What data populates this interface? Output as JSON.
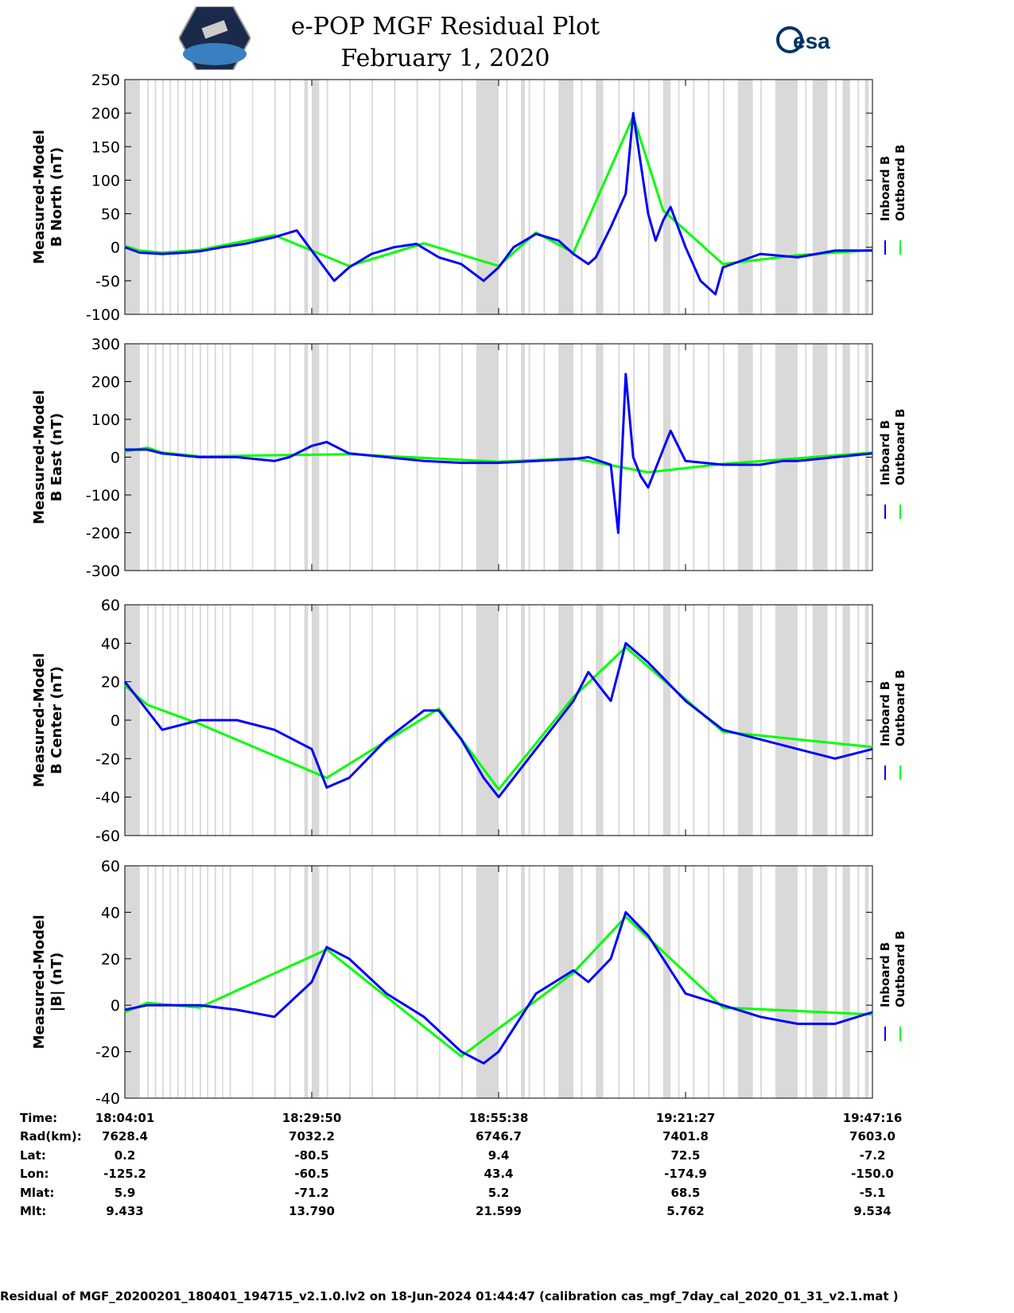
{
  "header": {
    "title_line1": "e-POP MGF Residual Plot",
    "title_line2": "February 1, 2020",
    "left_logo": "cassiope-mission-patch",
    "right_logo_text": "esa"
  },
  "chart_data": [
    {
      "type": "line",
      "ylabel_line1": "Measured-Model",
      "ylabel_line2": "B North (nT)",
      "ylim": [
        -100,
        250
      ],
      "yticks": [
        250,
        200,
        150,
        100,
        50,
        0,
        -50,
        -100
      ],
      "series": [
        {
          "name": "Inboard B",
          "color": "#0000ff",
          "x": [
            0,
            0.02,
            0.05,
            0.08,
            0.1,
            0.13,
            0.16,
            0.2,
            0.23,
            0.24,
            0.26,
            0.28,
            0.3,
            0.33,
            0.36,
            0.39,
            0.42,
            0.45,
            0.48,
            0.5,
            0.52,
            0.55,
            0.58,
            0.6,
            0.62,
            0.63,
            0.65,
            0.67,
            0.68,
            0.7,
            0.71,
            0.72,
            0.73,
            0.75,
            0.77,
            0.79,
            0.8,
            0.85,
            0.9,
            0.95,
            1.0
          ],
          "y": [
            0,
            -8,
            -10,
            -8,
            -6,
            0,
            5,
            15,
            25,
            10,
            -20,
            -50,
            -30,
            -10,
            0,
            5,
            -15,
            -25,
            -50,
            -30,
            0,
            20,
            10,
            -10,
            -25,
            -15,
            30,
            80,
            200,
            50,
            10,
            40,
            60,
            0,
            -50,
            -70,
            -30,
            -10,
            -15,
            -5,
            -5
          ]
        },
        {
          "name": "Outboard B",
          "color": "#00ff00",
          "x": [
            0,
            0.02,
            0.05,
            0.1,
            0.2,
            0.3,
            0.4,
            0.5,
            0.55,
            0.6,
            0.68,
            0.72,
            0.8,
            0.9,
            1.0
          ],
          "y": [
            2,
            -5,
            -8,
            -4,
            18,
            -28,
            6,
            -28,
            22,
            -8,
            195,
            55,
            -25,
            -12,
            -4
          ]
        }
      ]
    },
    {
      "type": "line",
      "ylabel_line1": "Measured-Model",
      "ylabel_line2": "B East (nT)",
      "ylim": [
        -300,
        300
      ],
      "yticks": [
        300,
        200,
        100,
        0,
        -100,
        -200,
        -300
      ],
      "series": [
        {
          "name": "Inboard B",
          "color": "#0000ff",
          "x": [
            0,
            0.03,
            0.05,
            0.1,
            0.15,
            0.2,
            0.22,
            0.25,
            0.27,
            0.3,
            0.35,
            0.4,
            0.45,
            0.5,
            0.55,
            0.6,
            0.62,
            0.65,
            0.66,
            0.67,
            0.68,
            0.69,
            0.7,
            0.71,
            0.72,
            0.73,
            0.75,
            0.8,
            0.85,
            0.88,
            0.9,
            0.95,
            1.0
          ],
          "y": [
            20,
            20,
            10,
            0,
            0,
            -10,
            0,
            30,
            40,
            10,
            0,
            -10,
            -15,
            -15,
            -10,
            -5,
            0,
            -20,
            -200,
            220,
            0,
            -50,
            -80,
            -30,
            20,
            70,
            -10,
            -20,
            -20,
            -10,
            -10,
            0,
            10
          ]
        },
        {
          "name": "Outboard B",
          "color": "#00ff00",
          "x": [
            0,
            0.03,
            0.05,
            0.1,
            0.3,
            0.5,
            0.6,
            0.7,
            0.8,
            1.0
          ],
          "y": [
            15,
            25,
            12,
            2,
            8,
            -12,
            -3,
            -40,
            -18,
            12
          ]
        }
      ]
    },
    {
      "type": "line",
      "ylabel_line1": "Measured-Model",
      "ylabel_line2": "B Center (nT)",
      "ylim": [
        -60,
        60
      ],
      "yticks": [
        60,
        40,
        20,
        0,
        -20,
        -40,
        -60
      ],
      "series": [
        {
          "name": "Inboard B",
          "color": "#0000ff",
          "x": [
            0,
            0.03,
            0.05,
            0.1,
            0.15,
            0.2,
            0.25,
            0.27,
            0.3,
            0.35,
            0.4,
            0.42,
            0.45,
            0.48,
            0.5,
            0.55,
            0.58,
            0.6,
            0.62,
            0.65,
            0.67,
            0.7,
            0.75,
            0.8,
            0.85,
            0.9,
            0.95,
            1.0
          ],
          "y": [
            20,
            5,
            -5,
            0,
            0,
            -5,
            -15,
            -35,
            -30,
            -10,
            5,
            5,
            -10,
            -30,
            -40,
            -15,
            0,
            10,
            25,
            10,
            40,
            30,
            10,
            -5,
            -10,
            -15,
            -20,
            -15
          ]
        },
        {
          "name": "Outboard B",
          "color": "#00ff00",
          "x": [
            0,
            0.03,
            0.1,
            0.27,
            0.42,
            0.5,
            0.6,
            0.67,
            0.8,
            1.0
          ],
          "y": [
            18,
            8,
            -2,
            -30,
            6,
            -36,
            12,
            38,
            -6,
            -14
          ]
        }
      ]
    },
    {
      "type": "line",
      "ylabel_line1": "Measured-Model",
      "ylabel_line2": "|B| (nT)",
      "ylim": [
        -40,
        60
      ],
      "yticks": [
        60,
        40,
        20,
        0,
        -20,
        -40
      ],
      "series": [
        {
          "name": "Inboard B",
          "color": "#0000ff",
          "x": [
            0,
            0.03,
            0.05,
            0.1,
            0.15,
            0.2,
            0.25,
            0.27,
            0.3,
            0.35,
            0.4,
            0.45,
            0.48,
            0.5,
            0.55,
            0.6,
            0.62,
            0.65,
            0.67,
            0.7,
            0.72,
            0.75,
            0.8,
            0.85,
            0.9,
            0.95,
            1.0
          ],
          "y": [
            -2,
            0,
            0,
            0,
            -2,
            -5,
            10,
            25,
            20,
            5,
            -5,
            -20,
            -25,
            -20,
            5,
            15,
            10,
            20,
            40,
            30,
            20,
            5,
            0,
            -5,
            -8,
            -8,
            -3
          ]
        },
        {
          "name": "Outboard B",
          "color": "#00ff00",
          "x": [
            0,
            0.03,
            0.1,
            0.27,
            0.45,
            0.6,
            0.67,
            0.8,
            1.0
          ],
          "y": [
            -3,
            1,
            -1,
            24,
            -22,
            14,
            38,
            -1,
            -4
          ]
        }
      ]
    }
  ],
  "legend": {
    "inboard": "Inboard B",
    "outboard": "Outboard B"
  },
  "ephemeris": {
    "labels": [
      "Time:",
      "Rad(km):",
      "Lat:",
      "Lon:",
      "Mlat:",
      "Mlt:"
    ],
    "columns": [
      {
        "x": 0,
        "values": [
          "18:04:01",
          "7628.4",
          "0.2",
          "-125.2",
          "5.9",
          "9.433"
        ]
      },
      {
        "x": 0.25,
        "values": [
          "18:29:50",
          "7032.2",
          "-80.5",
          "-60.5",
          "-71.2",
          "13.790"
        ]
      },
      {
        "x": 0.5,
        "values": [
          "18:55:38",
          "6746.7",
          "9.4",
          "43.4",
          "5.2",
          "21.599"
        ]
      },
      {
        "x": 0.75,
        "values": [
          "19:21:27",
          "7401.8",
          "72.5",
          "-174.9",
          "68.5",
          "5.762"
        ]
      },
      {
        "x": 1.0,
        "values": [
          "19:47:16",
          "7603.0",
          "-7.2",
          "-150.0",
          "-5.1",
          "9.534"
        ]
      }
    ]
  },
  "footer": "Residual of MGF_20200201_180401_194715_v2.1.0.lv2 on 18-Jun-2024 01:44:47 (calibration cas_mgf_7day_cal_2020_01_31_v2.1.mat )"
}
